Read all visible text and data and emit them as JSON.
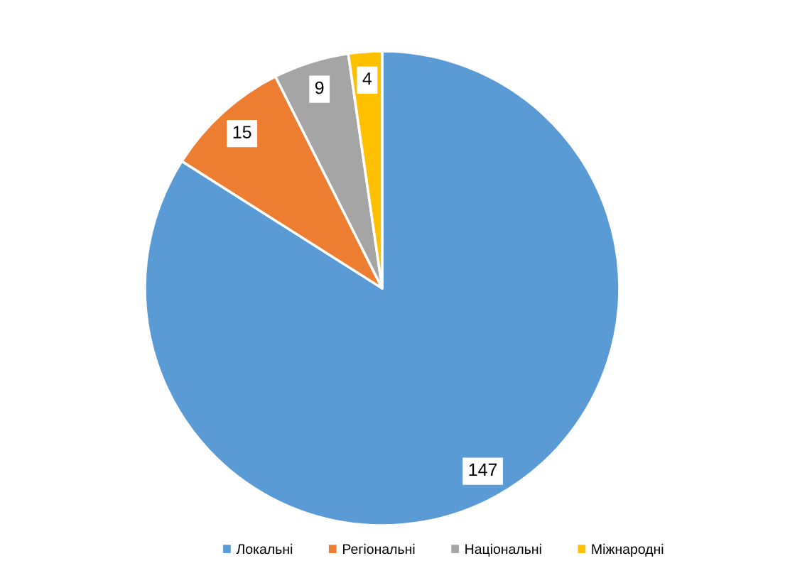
{
  "chart_data": {
    "type": "pie",
    "categories": [
      "Локальні",
      "Регіональні",
      "Національні",
      "Міжнародні"
    ],
    "values": [
      147,
      15,
      9,
      4
    ],
    "colors": [
      "#5b9bd5",
      "#ed7d31",
      "#a5a5a5",
      "#ffc000"
    ],
    "data_labels": true,
    "legend": "bottom"
  }
}
